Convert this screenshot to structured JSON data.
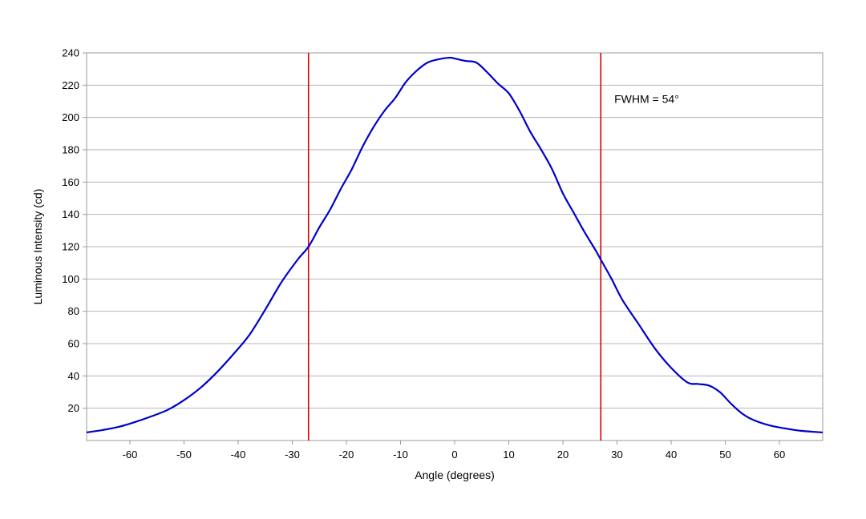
{
  "chart_data": {
    "type": "line",
    "title": "",
    "xlabel": "Angle (degrees)",
    "ylabel": "Luminous Intensity (cd)",
    "xlim": [
      -68,
      68
    ],
    "ylim": [
      0,
      240
    ],
    "x_ticks": [
      -60,
      -50,
      -40,
      -30,
      -20,
      -10,
      0,
      10,
      20,
      30,
      40,
      50,
      60
    ],
    "y_ticks": [
      20,
      40,
      60,
      80,
      100,
      120,
      140,
      160,
      180,
      200,
      220,
      240
    ],
    "grid": "horizontal",
    "series": [
      {
        "color": "#0000cc",
        "x": [
          -68,
          -65,
          -62,
          -59,
          -56,
          -53,
          -50,
          -47,
          -44,
          -41,
          -38,
          -35,
          -32,
          -29,
          -27,
          -25,
          -23,
          -21,
          -19,
          -17,
          -15,
          -13,
          -11,
          -9,
          -7,
          -5,
          -3,
          -1,
          0,
          2,
          4,
          6,
          8,
          10,
          12,
          14,
          16,
          18,
          20,
          22,
          24,
          26,
          27,
          29,
          31,
          34,
          37,
          40,
          43,
          45,
          47,
          49,
          51,
          53,
          55,
          58,
          61,
          64,
          68
        ],
        "y": [
          5,
          6.5,
          8.5,
          11.5,
          15,
          19,
          25,
          32.5,
          42,
          53,
          65,
          81,
          98,
          112,
          120,
          132,
          143,
          156,
          168,
          182,
          194,
          204,
          212,
          222,
          229,
          234,
          236,
          237,
          236.5,
          235,
          234,
          228,
          221,
          215,
          204,
          191,
          180,
          168,
          153,
          141,
          129,
          118,
          112,
          100,
          87,
          72,
          57,
          45,
          36,
          35,
          34,
          30,
          23,
          17,
          13,
          9.5,
          7.5,
          6,
          5
        ]
      }
    ],
    "reference_lines": [
      {
        "x": -27,
        "color": "#dd0000"
      },
      {
        "x": 27,
        "color": "#dd0000"
      }
    ],
    "annotations": [
      {
        "text": "FWHM = 54°",
        "x": 29.5,
        "y": 209
      }
    ]
  }
}
